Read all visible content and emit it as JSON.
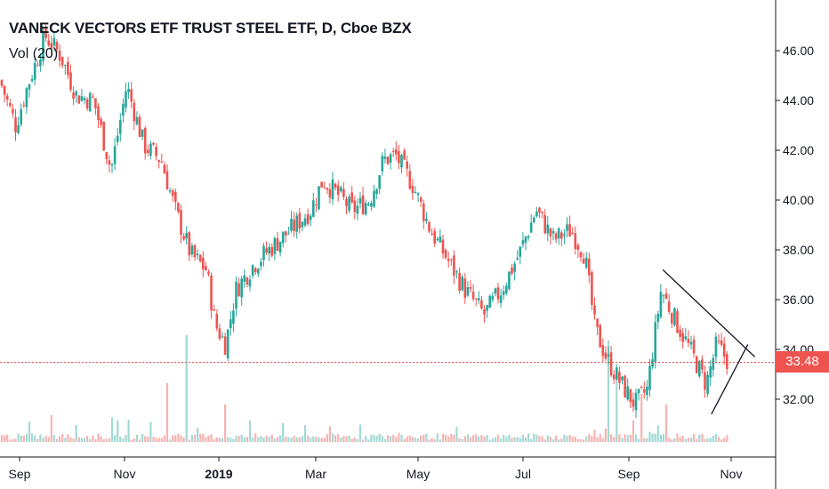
{
  "header": {
    "title": "VANECK VECTORS ETF TRUST STEEL ETF, D, Cboe BZX",
    "volume_label": "Vol (20)"
  },
  "current_price": "33.48",
  "colors": {
    "up": "#26a69a",
    "down": "#ef5350",
    "up_volume": "#a3d9d4",
    "down_volume": "#f5b3b1",
    "price_line": "#ef5350",
    "axis": "#131722"
  },
  "chart_data": {
    "type": "candlestick",
    "title": "VANECK VECTORS ETF TRUST STEEL ETF, D, Cboe BZX",
    "interval": "D",
    "exchange": "Cboe BZX",
    "y_axis": {
      "ticks": [
        "46.00",
        "44.00",
        "42.00",
        "40.00",
        "38.00",
        "36.00",
        "34.00",
        "32.00"
      ],
      "range": [
        30.5,
        47.3
      ],
      "position": "right"
    },
    "x_axis": {
      "ticks": [
        "Sep",
        "Nov",
        "2019",
        "Mar",
        "May",
        "Jul",
        "Sep",
        "Nov"
      ],
      "bold_tick": "2019",
      "range": [
        "2018-08-27",
        "2019-11-17"
      ]
    },
    "price_line": 33.48,
    "close_path": [
      [
        "2018-08-27",
        44.8
      ],
      [
        "2018-09-05",
        43.0
      ],
      [
        "2018-09-12",
        44.6
      ],
      [
        "2018-09-22",
        46.6
      ],
      [
        "2018-10-01",
        45.8
      ],
      [
        "2018-10-10",
        44.2
      ],
      [
        "2018-10-20",
        44.0
      ],
      [
        "2018-10-30",
        41.2
      ],
      [
        "2018-11-08",
        44.6
      ],
      [
        "2018-11-18",
        42.2
      ],
      [
        "2018-11-28",
        41.6
      ],
      [
        "2018-12-06",
        39.6
      ],
      [
        "2018-12-15",
        37.8
      ],
      [
        "2018-12-24",
        37.2
      ],
      [
        "2018-12-29",
        35.0
      ],
      [
        "2019-01-04",
        34.2
      ],
      [
        "2019-01-10",
        36.4
      ],
      [
        "2019-01-20",
        37.4
      ],
      [
        "2019-02-01",
        38.2
      ],
      [
        "2019-02-12",
        38.9
      ],
      [
        "2019-02-22",
        39.6
      ],
      [
        "2019-03-01",
        40.8
      ],
      [
        "2019-03-10",
        40.2
      ],
      [
        "2019-03-18",
        39.6
      ],
      [
        "2019-03-28",
        40.0
      ],
      [
        "2019-04-05",
        41.6
      ],
      [
        "2019-04-12",
        41.8
      ],
      [
        "2019-04-22",
        40.6
      ],
      [
        "2019-05-02",
        38.8
      ],
      [
        "2019-05-12",
        37.6
      ],
      [
        "2019-05-22",
        36.4
      ],
      [
        "2019-06-02",
        35.4
      ],
      [
        "2019-06-12",
        36.4
      ],
      [
        "2019-06-22",
        37.8
      ],
      [
        "2019-07-02",
        39.6
      ],
      [
        "2019-07-12",
        38.4
      ],
      [
        "2019-07-22",
        38.8
      ],
      [
        "2019-07-30",
        37.8
      ],
      [
        "2019-08-05",
        34.8
      ],
      [
        "2019-08-12",
        33.6
      ],
      [
        "2019-08-20",
        32.6
      ],
      [
        "2019-08-28",
        31.8
      ],
      [
        "2019-09-04",
        32.4
      ],
      [
        "2019-09-12",
        36.4
      ],
      [
        "2019-09-20",
        35.2
      ],
      [
        "2019-09-30",
        33.8
      ],
      [
        "2019-10-08",
        32.6
      ],
      [
        "2019-10-14",
        34.2
      ],
      [
        "2019-10-21",
        33.48
      ]
    ],
    "volume": {
      "baseline_level": 0.05,
      "spikes": [
        {
          "date": "2018-09-26",
          "level": 0.25
        },
        {
          "date": "2018-11-02",
          "level": 0.2
        },
        {
          "date": "2018-12-02",
          "level": 0.55
        },
        {
          "date": "2018-12-13",
          "level": 1.0
        },
        {
          "date": "2019-01-04",
          "level": 0.35
        },
        {
          "date": "2019-08-12",
          "level": 0.95
        },
        {
          "date": "2019-08-18",
          "level": 0.6
        },
        {
          "date": "2019-09-01",
          "level": 0.45
        },
        {
          "date": "2019-09-15",
          "level": 0.35
        }
      ]
    },
    "annotations": [
      {
        "type": "trendline",
        "from": [
          "2019-09-13",
          37.2
        ],
        "to": [
          "2019-11-05",
          33.7
        ]
      },
      {
        "type": "trendline",
        "from": [
          "2019-10-11",
          31.4
        ],
        "to": [
          "2019-11-01",
          34.2
        ]
      }
    ],
    "grid": false,
    "legend": "none"
  }
}
